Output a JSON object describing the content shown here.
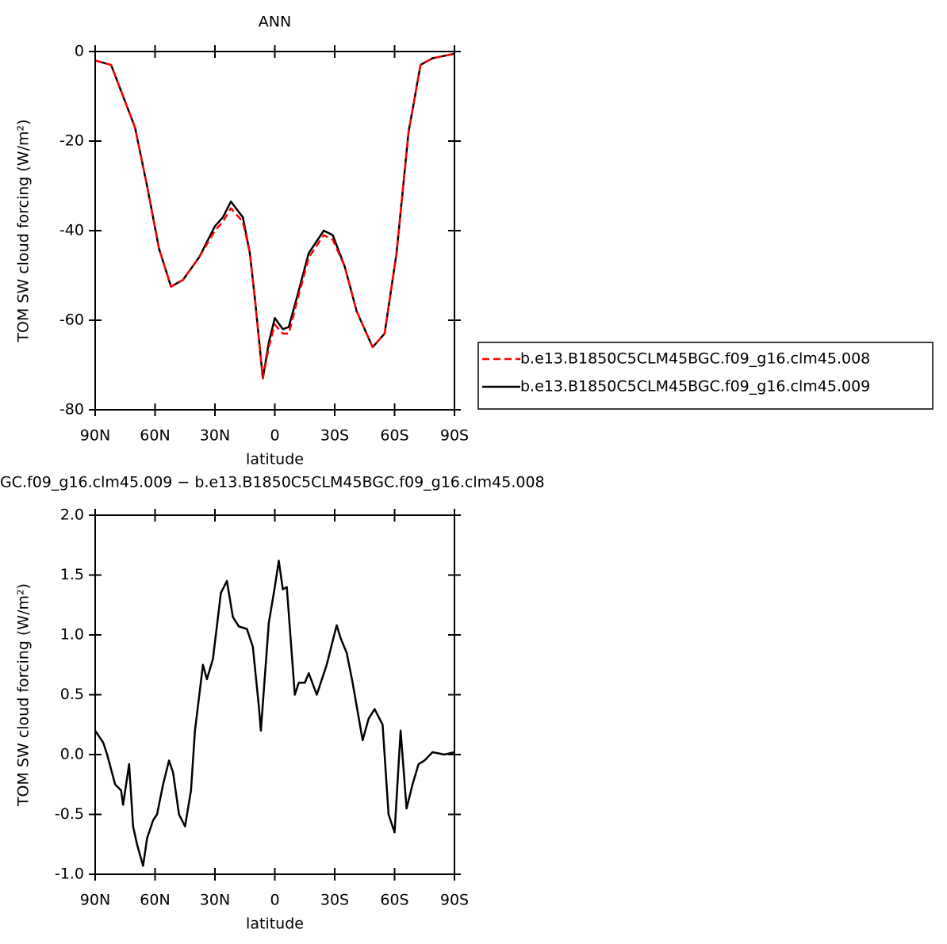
{
  "chart_data": [
    {
      "type": "line",
      "title": "ANN",
      "xlabel": "latitude",
      "ylabel": "TOM SW cloud forcing (W/m²)",
      "x": [
        90,
        82,
        76,
        70,
        64,
        58,
        52,
        46,
        38,
        30,
        26,
        22,
        16,
        12.5,
        10,
        6,
        3,
        0,
        -4,
        -7,
        -11,
        -17,
        -24.5,
        -29,
        -35,
        -41,
        -49,
        -55,
        -61,
        -67,
        -73,
        -79,
        -90
      ],
      "series": [
        {
          "name": "b.e13.B1850C5CLM45BGC.f09_g16.clm45.008",
          "color": "#ff0000",
          "line_style": "dashed",
          "values": [
            -2,
            -3,
            -10,
            -17,
            -30,
            -44,
            -52.5,
            -51,
            -46,
            -40,
            -38,
            -35,
            -38,
            -45,
            -55,
            -73,
            -66,
            -61,
            -63,
            -63,
            -56,
            -46,
            -41,
            -42,
            -48,
            -58,
            -66,
            -63,
            -45,
            -18,
            -3,
            -1.5,
            -0.5
          ]
        },
        {
          "name": "b.e13.B1850C5CLM45BGC.f09_g16.clm45.009",
          "color": "#000000",
          "line_style": "solid",
          "values": [
            -2,
            -3,
            -10,
            -17,
            -30,
            -44,
            -52.5,
            -51,
            -46,
            -39,
            -37,
            -33.5,
            -37,
            -45,
            -55,
            -73,
            -65,
            -59.5,
            -62,
            -61.5,
            -55,
            -45,
            -40,
            -41,
            -48,
            -58,
            -66,
            -63,
            -45,
            -18,
            -3,
            -1.5,
            -0.5
          ]
        }
      ],
      "xlim": [
        90,
        -90
      ],
      "xticks": [
        {
          "value": 90,
          "label": "90N"
        },
        {
          "value": 60,
          "label": "60N"
        },
        {
          "value": 30,
          "label": "30N"
        },
        0,
        {
          "value": -30,
          "label": "30S"
        },
        {
          "value": -60,
          "label": "60S"
        },
        {
          "value": -90,
          "label": "90S"
        }
      ],
      "ylim": [
        -80,
        0
      ],
      "yticks": [
        0,
        -20,
        -40,
        -60,
        -80
      ],
      "legend": "right"
    },
    {
      "type": "line",
      "title": "GC.f09_g16.clm45.009 − b.e13.B1850C5CLM45BGC.f09_g16.clm45.008",
      "xlabel": "latitude",
      "ylabel": "TOM SW cloud forcing (W/m²)",
      "x": [
        90,
        86,
        84,
        80,
        77,
        76,
        73,
        71,
        69,
        66,
        64,
        61,
        59,
        56,
        53,
        51,
        48,
        45,
        42,
        40,
        36,
        34,
        31,
        27,
        24,
        21,
        18,
        14,
        11,
        8,
        7,
        3,
        0,
        -2,
        -4,
        -6,
        -10,
        -12,
        -15,
        -17,
        -21,
        -26,
        -29,
        -31,
        -33,
        -36,
        -39,
        -44,
        -47,
        -50,
        -54,
        -57,
        -60,
        -63,
        -66,
        -69,
        -72,
        -75,
        -79,
        -85,
        -90
      ],
      "values": [
        0.2,
        0.1,
        0.0,
        -0.25,
        -0.3,
        -0.42,
        -0.08,
        -0.6,
        -0.75,
        -0.93,
        -0.7,
        -0.55,
        -0.5,
        -0.25,
        -0.05,
        -0.15,
        -0.5,
        -0.6,
        -0.3,
        0.2,
        0.75,
        0.63,
        0.8,
        1.35,
        1.45,
        1.15,
        1.07,
        1.05,
        0.9,
        0.4,
        0.2,
        1.1,
        1.4,
        1.62,
        1.38,
        1.4,
        0.5,
        0.6,
        0.6,
        0.68,
        0.5,
        0.75,
        0.95,
        1.08,
        0.97,
        0.85,
        0.6,
        0.12,
        0.3,
        0.38,
        0.25,
        -0.5,
        -0.65,
        0.2,
        -0.45,
        -0.25,
        -0.08,
        -0.05,
        0.02,
        0.0,
        0.02
      ],
      "color": "#000000",
      "line_style": "solid",
      "xlim": [
        90,
        -90
      ],
      "xticks": [
        {
          "value": 90,
          "label": "90N"
        },
        {
          "value": 60,
          "label": "60N"
        },
        {
          "value": 30,
          "label": "30N"
        },
        0,
        {
          "value": -30,
          "label": "30S"
        },
        {
          "value": -60,
          "label": "60S"
        },
        {
          "value": -90,
          "label": "90S"
        }
      ],
      "ylim": [
        -1,
        2
      ],
      "yticks": [
        {
          "value": 2,
          "label": "2.0"
        },
        1.5,
        {
          "value": 1,
          "label": "1.0"
        },
        0.5,
        {
          "value": 0,
          "label": "0.0"
        },
        -0.5,
        {
          "value": -1,
          "label": "-1.0"
        }
      ]
    }
  ]
}
